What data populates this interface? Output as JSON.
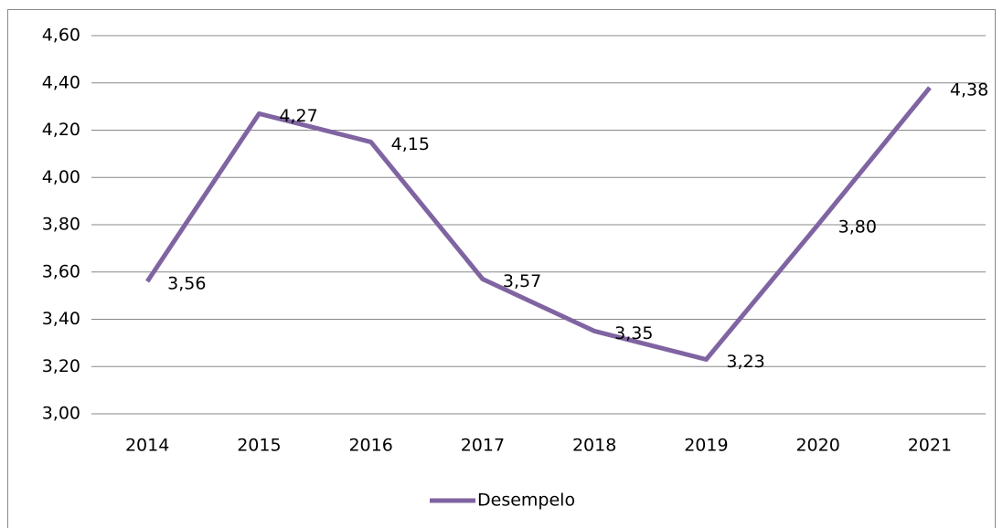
{
  "chart_data": {
    "type": "line",
    "categories": [
      "2014",
      "2015",
      "2016",
      "2017",
      "2018",
      "2019",
      "2020",
      "2021"
    ],
    "series": [
      {
        "name": "Desempelo",
        "color": "#8064a2",
        "values": [
          3.56,
          4.27,
          4.15,
          3.57,
          3.35,
          3.23,
          3.8,
          4.38
        ],
        "value_labels": [
          "3,56",
          "4,27",
          "4,15",
          "3,57",
          "3,35",
          "3,23",
          "3,80",
          "4,38"
        ]
      }
    ],
    "ylim": [
      3.0,
      4.6
    ],
    "yticks": [
      {
        "value": 3.0,
        "label": "3,00"
      },
      {
        "value": 3.2,
        "label": "3,20"
      },
      {
        "value": 3.4,
        "label": "3,40"
      },
      {
        "value": 3.6,
        "label": "3,60"
      },
      {
        "value": 3.8,
        "label": "3,80"
      },
      {
        "value": 4.0,
        "label": "4,00"
      },
      {
        "value": 4.2,
        "label": "4,20"
      },
      {
        "value": 4.4,
        "label": "4,40"
      },
      {
        "value": 4.6,
        "label": "4,60"
      }
    ],
    "grid": true,
    "legend": "bottom"
  }
}
